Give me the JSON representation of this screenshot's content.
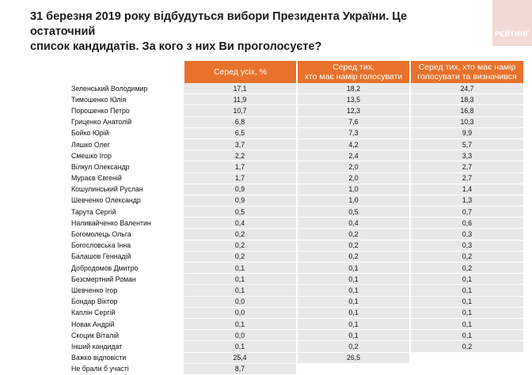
{
  "title_line1": "31 березня 2019 року відбудуться вибори Президента України. Це остаточний",
  "title_line2": "список кандидатів. За кого з них Ви проголосуєте?",
  "logo_text": "РЕЙТИНГ",
  "chart_data": {
    "type": "table",
    "columns": [
      "Серед усіх, %",
      "Серед тих, хто має намір голосувати",
      "Серед тих, хто має намір голосувати та визначився"
    ],
    "header_lines": [
      [
        "Серед усіх, %"
      ],
      [
        "Серед тих,",
        "хто має намір голосувати"
      ],
      [
        "Серед тих, хто має намір",
        "голосувати та визначився"
      ]
    ],
    "rows": [
      {
        "name": "Зеленський Володимир",
        "values": [
          "17,1",
          "18,2",
          "24,7"
        ]
      },
      {
        "name": "Тимошенко Юлія",
        "values": [
          "11,9",
          "13,5",
          "18,3"
        ]
      },
      {
        "name": "Порошенко Петро",
        "values": [
          "10,7",
          "12,3",
          "16,8"
        ]
      },
      {
        "name": "Гриценко Анатолій",
        "values": [
          "6,8",
          "7,6",
          "10,3"
        ]
      },
      {
        "name": "Бойко Юрій",
        "values": [
          "6,5",
          "7,3",
          "9,9"
        ]
      },
      {
        "name": "Ляшко Олег",
        "values": [
          "3,7",
          "4,2",
          "5,7"
        ]
      },
      {
        "name": "Смешко Ігор",
        "values": [
          "2,2",
          "2,4",
          "3,3"
        ]
      },
      {
        "name": "Вілкул Олександр",
        "values": [
          "1,7",
          "2,0",
          "2,7"
        ]
      },
      {
        "name": "Мураєв Євгеній",
        "values": [
          "1,7",
          "2,0",
          "2,7"
        ]
      },
      {
        "name": "Кошулинський Руслан",
        "values": [
          "0,9",
          "1,0",
          "1,4"
        ]
      },
      {
        "name": "Шевченко Олександр",
        "values": [
          "0,9",
          "1,0",
          "1,3"
        ]
      },
      {
        "name": "Тарута Сергій",
        "values": [
          "0,5",
          "0,5",
          "0,7"
        ]
      },
      {
        "name": "Наливайченко Валентин",
        "values": [
          "0,4",
          "0,4",
          "0,6"
        ]
      },
      {
        "name": "Богомолець Ольга",
        "values": [
          "0,2",
          "0,2",
          "0,3"
        ]
      },
      {
        "name": "Богословська Інна",
        "values": [
          "0,2",
          "0,2",
          "0,3"
        ]
      },
      {
        "name": "Балашов Геннадій",
        "values": [
          "0,2",
          "0,2",
          "0,2"
        ]
      },
      {
        "name": "Добродомов Дмитро",
        "values": [
          "0,1",
          "0,1",
          "0,2"
        ]
      },
      {
        "name": "Безсмертний Роман",
        "values": [
          "0,1",
          "0,1",
          "0,1"
        ]
      },
      {
        "name": "Шевченко Ігор",
        "values": [
          "0,1",
          "0,1",
          "0,1"
        ]
      },
      {
        "name": "Бондар Віктор",
        "values": [
          "0,0",
          "0,1",
          "0,1"
        ]
      },
      {
        "name": "Каплін Сергій",
        "values": [
          "0,0",
          "0,1",
          "0,1"
        ]
      },
      {
        "name": "Новак Андрій",
        "values": [
          "0,1",
          "0,1",
          "0,1"
        ]
      },
      {
        "name": "Скоцик Віталій",
        "values": [
          "0,0",
          "0,1",
          "0,1"
        ]
      },
      {
        "name": "Інший кандидат",
        "values": [
          "0,1",
          "0,2",
          "0,2"
        ]
      },
      {
        "name": "Важко відповісти",
        "values": [
          "25,4",
          "26,5",
          ""
        ]
      },
      {
        "name": "Не брали б участі",
        "values": [
          "8,7",
          "",
          ""
        ]
      }
    ]
  }
}
